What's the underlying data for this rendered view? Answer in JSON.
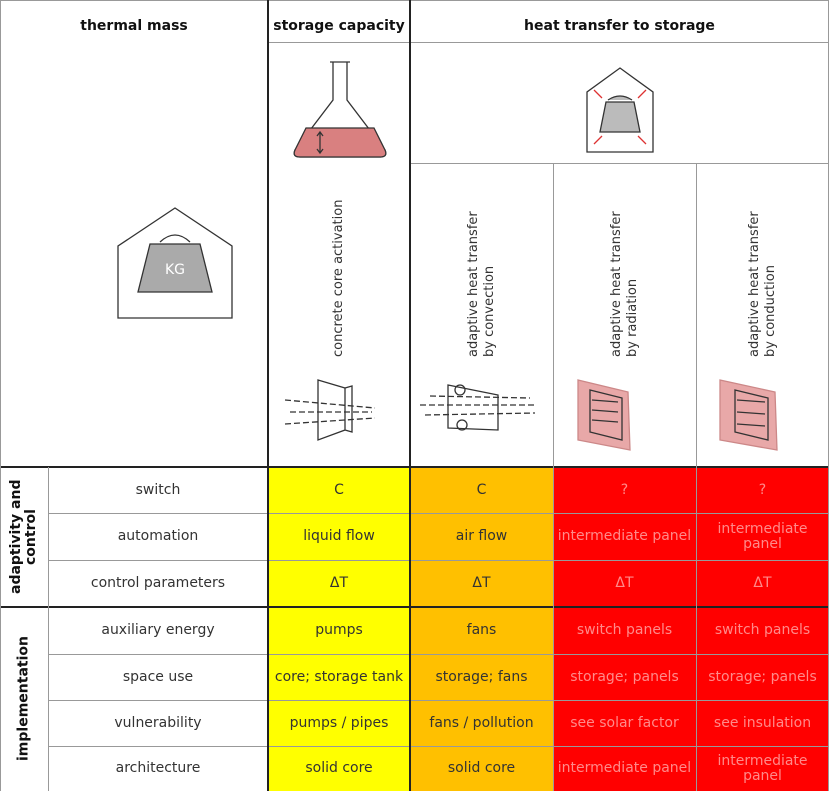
{
  "header": {
    "thermal_mass": "thermal mass",
    "storage_capacity": "storage capacity",
    "heat_transfer": "heat transfer to storage"
  },
  "columns": [
    [
      "concrete core activation"
    ],
    [
      "adaptive heat transfer",
      "by convection"
    ],
    [
      "adaptive heat transfer",
      "by radiation"
    ],
    [
      "adaptive heat transfer",
      "by conduction"
    ]
  ],
  "groups": [
    {
      "label": [
        "adaptivity and",
        "control"
      ],
      "rows": [
        {
          "label": "switch",
          "cells": [
            "C",
            "C",
            "?",
            "?"
          ]
        },
        {
          "label": "automation",
          "cells": [
            "liquid flow",
            "air flow",
            "intermediate panel",
            "intermediate panel"
          ]
        },
        {
          "label": "control parameters",
          "cells": [
            "ΔT",
            "ΔT",
            "ΔT",
            "ΔT"
          ]
        }
      ]
    },
    {
      "label": [
        "implementation"
      ],
      "rows": [
        {
          "label": "auxiliary energy",
          "cells": [
            "pumps",
            "fans",
            "switch panels",
            "switch panels"
          ]
        },
        {
          "label": "space use",
          "cells": [
            "core; storage tank",
            "storage; fans",
            "storage; panels",
            "storage; panels"
          ]
        },
        {
          "label": "vulnerability",
          "cells": [
            "pumps / pipes",
            "fans / pollution",
            "see solar factor",
            "see insulation"
          ]
        },
        {
          "label": "architecture",
          "cells": [
            "solid core",
            "solid core",
            "intermediate panel",
            "intermediate panel"
          ]
        }
      ]
    }
  ]
}
